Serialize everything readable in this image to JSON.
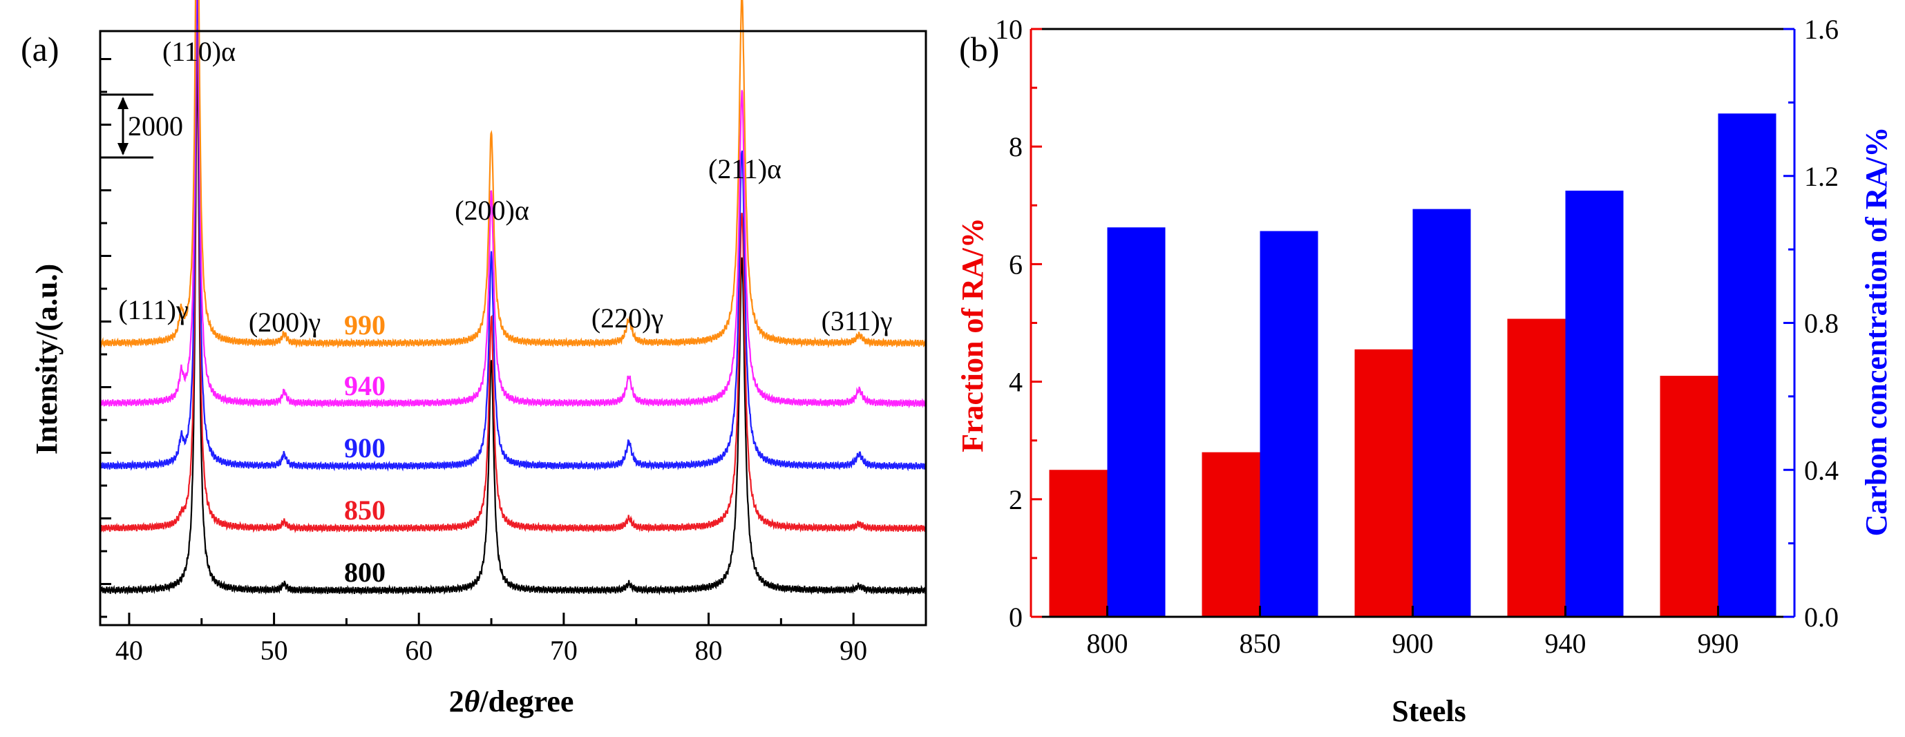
{
  "chart_data": [
    {
      "type": "line",
      "panel_label": "(a)",
      "xlabel_prefix": "2",
      "xlabel_theta": "θ",
      "xlabel_suffix": "/degree",
      "ylabel": "Intensity/(a.u.)",
      "xlim": [
        38,
        95
      ],
      "xticks": [
        "40",
        "50",
        "60",
        "70",
        "80",
        "90"
      ],
      "scale_bar_label": "2000",
      "series": [
        {
          "name": "800",
          "color": "#000000",
          "peaks": [
            [
              44.7,
              1.0
            ],
            [
              50.7,
              0.012
            ],
            [
              65.0,
              0.44
            ],
            [
              74.5,
              0.012
            ],
            [
              82.3,
              0.63
            ],
            [
              90.4,
              0.008
            ]
          ]
        },
        {
          "name": "850",
          "color": "#ee1c25",
          "peaks": [
            [
              43.6,
              0.012
            ],
            [
              44.7,
              0.95
            ],
            [
              50.7,
              0.012
            ],
            [
              65.0,
              0.4
            ],
            [
              74.5,
              0.018
            ],
            [
              82.3,
              0.6
            ],
            [
              90.4,
              0.008
            ]
          ]
        },
        {
          "name": "900",
          "color": "#1f1fff",
          "peaks": [
            [
              43.6,
              0.04
            ],
            [
              44.7,
              0.92
            ],
            [
              50.7,
              0.022
            ],
            [
              65.0,
              0.4
            ],
            [
              74.5,
              0.045
            ],
            [
              82.3,
              0.6
            ],
            [
              90.4,
              0.022
            ]
          ]
        },
        {
          "name": "940",
          "color": "#ff22ff",
          "peaks": [
            [
              43.6,
              0.045
            ],
            [
              44.7,
              0.93
            ],
            [
              50.7,
              0.022
            ],
            [
              65.0,
              0.4
            ],
            [
              74.5,
              0.05
            ],
            [
              82.3,
              0.59
            ],
            [
              90.4,
              0.025
            ]
          ]
        },
        {
          "name": "990",
          "color": "#ff8c10",
          "peaks": [
            [
              43.6,
              0.048
            ],
            [
              44.7,
              0.96
            ],
            [
              50.7,
              0.018
            ],
            [
              65.0,
              0.4
            ],
            [
              74.5,
              0.045
            ],
            [
              82.3,
              0.66
            ],
            [
              90.4,
              0.015
            ]
          ]
        }
      ],
      "peak_labels": [
        {
          "text": "(110)α",
          "x": 44.7
        },
        {
          "text": "(111)γ",
          "x": 43.6
        },
        {
          "text": "(200)γ",
          "x": 50.7
        },
        {
          "text": "(200)α",
          "x": 65.0
        },
        {
          "text": "(220)γ",
          "x": 74.5
        },
        {
          "text": "(211)α",
          "x": 82.3
        },
        {
          "text": "(311)γ",
          "x": 90.4
        }
      ]
    },
    {
      "type": "bar",
      "panel_label": "(b)",
      "categories": [
        "800",
        "850",
        "900",
        "940",
        "990"
      ],
      "xlabel": "Steels",
      "series": [
        {
          "name": "Fraction of RA/%",
          "axis": "left",
          "color": "#ee0000",
          "values": [
            2.5,
            2.8,
            4.55,
            5.07,
            4.1
          ]
        },
        {
          "name": "Carbon concentration of RA/%",
          "axis": "right",
          "color": "#0000ff",
          "values": [
            1.06,
            1.05,
            1.11,
            1.16,
            1.37
          ]
        }
      ],
      "ylabel_left": "Fraction of RA/%",
      "ylabel_right": "Carbon concentration of RA/%",
      "ylim_left": [
        0,
        10
      ],
      "ylim_right": [
        0,
        1.6
      ],
      "yticks_left": [
        "0",
        "2",
        "4",
        "6",
        "8",
        "10"
      ],
      "yticks_right": [
        "0.0",
        "0.4",
        "0.8",
        "1.2",
        "1.6"
      ],
      "left_color": "#ee0000",
      "right_color": "#0000ff"
    }
  ]
}
